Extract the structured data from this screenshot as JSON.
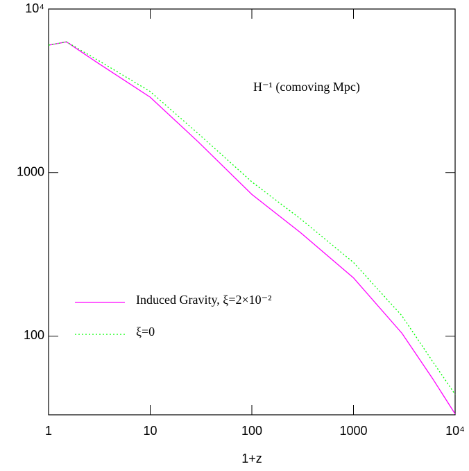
{
  "chart_data": {
    "type": "line",
    "annotation": "H⁻¹ (comoving Mpc)",
    "x_label": "1+z",
    "x": [
      1,
      1.5,
      3,
      10,
      30,
      100,
      300,
      1000,
      3000,
      6000,
      10000
    ],
    "series": [
      {
        "name": "Induced Gravity, ξ=2×10⁻²",
        "color": "#ff00ff",
        "style": "solid",
        "values": [
          6010,
          6300,
          4710,
          2890,
          1530,
          735,
          430,
          227,
          104,
          55,
          33.4
        ]
      },
      {
        "name": "ξ=0",
        "color": "#00ff00",
        "style": "dotted",
        "values": [
          6010,
          6300,
          4900,
          3130,
          1720,
          877,
          522,
          282,
          133,
          70,
          44
        ]
      }
    ],
    "xlim": [
      1,
      10000
    ],
    "ylim": [
      33,
      10000
    ],
    "xticks": [
      1,
      10,
      100,
      1000,
      {
        "value": 10000,
        "label": "10⁴"
      }
    ],
    "yticks": [
      100,
      1000,
      {
        "value": 10000,
        "label": "10⁴"
      }
    ],
    "xscale": "log",
    "yscale": "log"
  }
}
